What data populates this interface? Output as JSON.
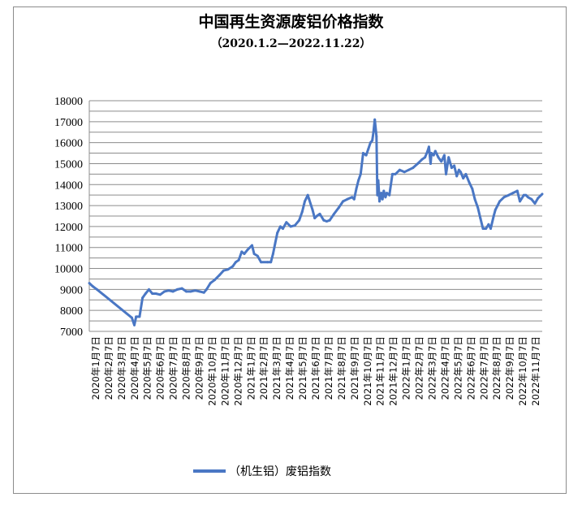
{
  "chart_data": {
    "type": "line",
    "title": "中国再生资源废铝价格指数",
    "subtitle": "（2020.1.2—2022.11.22）",
    "ylim": [
      7000,
      18000
    ],
    "ystep": 500,
    "grid": "horizontal",
    "legend_position": "bottom",
    "colors": {
      "line": "#4a77c4",
      "grid": "#8c8c8c",
      "axis": "#8c8c8c"
    },
    "x_tick_labels": [
      "2020年1月7日",
      "2020年2月7日",
      "2020年3月7日",
      "2020年4月7日",
      "2020年5月7日",
      "2020年6月7日",
      "2020年7月7日",
      "2020年8月7日",
      "2020年9月7日",
      "2020年10月7日",
      "2020年11月7日",
      "2020年12月7日",
      "2021年1月7日",
      "2021年2月7日",
      "2021年3月7日",
      "2021年4月7日",
      "2021年5月7日",
      "2021年6月7日",
      "2021年7月7日",
      "2021年8月7日",
      "2021年9月7日",
      "2021年10月7日",
      "2021年11月7日",
      "2021年12月7日",
      "2022年1月7日",
      "2022年2月7日",
      "2022年3月7日",
      "2022年4月7日",
      "2022年5月7日",
      "2022年6月7日",
      "2022年7月7日",
      "2022年8月7日",
      "2022年9月7日",
      "2022年10月7日",
      "2022年11月7日"
    ],
    "series": [
      {
        "name": "（机生铝）废铝指数",
        "x": [
          "2020-01-02",
          "2020-01-10",
          "2020-01-20",
          "2020-04-10",
          "2020-04-16",
          "2020-04-20",
          "2020-04-28",
          "2020-05-05",
          "2020-05-12",
          "2020-05-20",
          "2020-05-28",
          "2020-06-05",
          "2020-06-15",
          "2020-06-25",
          "2020-07-05",
          "2020-07-15",
          "2020-07-25",
          "2020-08-05",
          "2020-08-15",
          "2020-08-25",
          "2020-09-05",
          "2020-09-15",
          "2020-09-25",
          "2020-10-01",
          "2020-10-10",
          "2020-10-20",
          "2020-11-01",
          "2020-11-10",
          "2020-11-20",
          "2020-12-01",
          "2020-12-08",
          "2020-12-15",
          "2020-12-22",
          "2020-12-28",
          "2021-01-05",
          "2021-01-15",
          "2021-01-20",
          "2021-01-28",
          "2021-02-05",
          "2021-02-20",
          "2021-02-28",
          "2021-03-05",
          "2021-03-10",
          "2021-03-15",
          "2021-03-22",
          "2021-03-28",
          "2021-04-05",
          "2021-04-15",
          "2021-04-25",
          "2021-05-05",
          "2021-05-12",
          "2021-05-18",
          "2021-05-25",
          "2021-05-28",
          "2021-06-05",
          "2021-06-10",
          "2021-06-15",
          "2021-06-22",
          "2021-07-01",
          "2021-07-08",
          "2021-07-15",
          "2021-07-25",
          "2021-08-05",
          "2021-08-15",
          "2021-08-25",
          "2021-09-05",
          "2021-09-10",
          "2021-09-15",
          "2021-09-20",
          "2021-09-25",
          "2021-10-01",
          "2021-10-08",
          "2021-10-13",
          "2021-10-18",
          "2021-10-22",
          "2021-10-25",
          "2021-10-28",
          "2021-11-01",
          "2021-11-03",
          "2021-11-05",
          "2021-11-08",
          "2021-11-12",
          "2021-11-15",
          "2021-11-18",
          "2021-11-22",
          "2021-11-25",
          "2021-12-01",
          "2021-12-08",
          "2021-12-15",
          "2021-12-25",
          "2022-01-05",
          "2022-01-15",
          "2022-01-25",
          "2022-02-05",
          "2022-02-15",
          "2022-02-22",
          "2022-02-28",
          "2022-03-03",
          "2022-03-07",
          "2022-03-09",
          "2022-03-14",
          "2022-03-18",
          "2022-03-25",
          "2022-04-01",
          "2022-04-08",
          "2022-04-12",
          "2022-04-18",
          "2022-04-25",
          "2022-05-01",
          "2022-05-07",
          "2022-05-12",
          "2022-05-16",
          "2022-05-22",
          "2022-05-28",
          "2022-06-05",
          "2022-06-12",
          "2022-06-18",
          "2022-06-25",
          "2022-07-01",
          "2022-07-07",
          "2022-07-14",
          "2022-07-20",
          "2022-07-25",
          "2022-08-01",
          "2022-08-05",
          "2022-08-10",
          "2022-08-15",
          "2022-08-25",
          "2022-09-05",
          "2022-09-15",
          "2022-09-25",
          "2022-10-01",
          "2022-10-10",
          "2022-10-15",
          "2022-10-20",
          "2022-10-28",
          "2022-11-05",
          "2022-11-12",
          "2022-11-22"
        ],
        "values": [
          9300,
          9150,
          9000,
          7650,
          7300,
          7700,
          7700,
          8600,
          8800,
          9000,
          8800,
          8800,
          8750,
          8900,
          8950,
          8900,
          9000,
          9050,
          8900,
          8900,
          8950,
          8900,
          8850,
          9000,
          9300,
          9450,
          9700,
          9900,
          9950,
          10100,
          10300,
          10400,
          10800,
          10700,
          10900,
          11100,
          10700,
          10600,
          10300,
          10300,
          10300,
          10700,
          11200,
          11700,
          12000,
          11900,
          12200,
          12000,
          12050,
          12300,
          12700,
          13200,
          13500,
          13300,
          12800,
          12400,
          12500,
          12600,
          12300,
          12250,
          12300,
          12600,
          12900,
          13200,
          13300,
          13400,
          13300,
          13800,
          14200,
          14500,
          15500,
          15400,
          15700,
          16000,
          16100,
          16500,
          17100,
          16300,
          13500,
          14200,
          13200,
          13600,
          13300,
          13700,
          13400,
          13600,
          13500,
          14500,
          14500,
          14700,
          14600,
          14700,
          14800,
          15000,
          15200,
          15300,
          15600,
          15800,
          15000,
          15500,
          15400,
          15600,
          15300,
          15100,
          15400,
          14500,
          15300,
          14800,
          14900,
          14400,
          14700,
          14600,
          14300,
          14500,
          14100,
          13800,
          13300,
          12900,
          12400,
          11900,
          11900,
          12100,
          11900,
          12500,
          12800,
          13000,
          13200,
          13400,
          13500,
          13600,
          13700,
          13200,
          13500,
          13500,
          13400,
          13300,
          13100,
          13350,
          13550
        ]
      }
    ]
  }
}
